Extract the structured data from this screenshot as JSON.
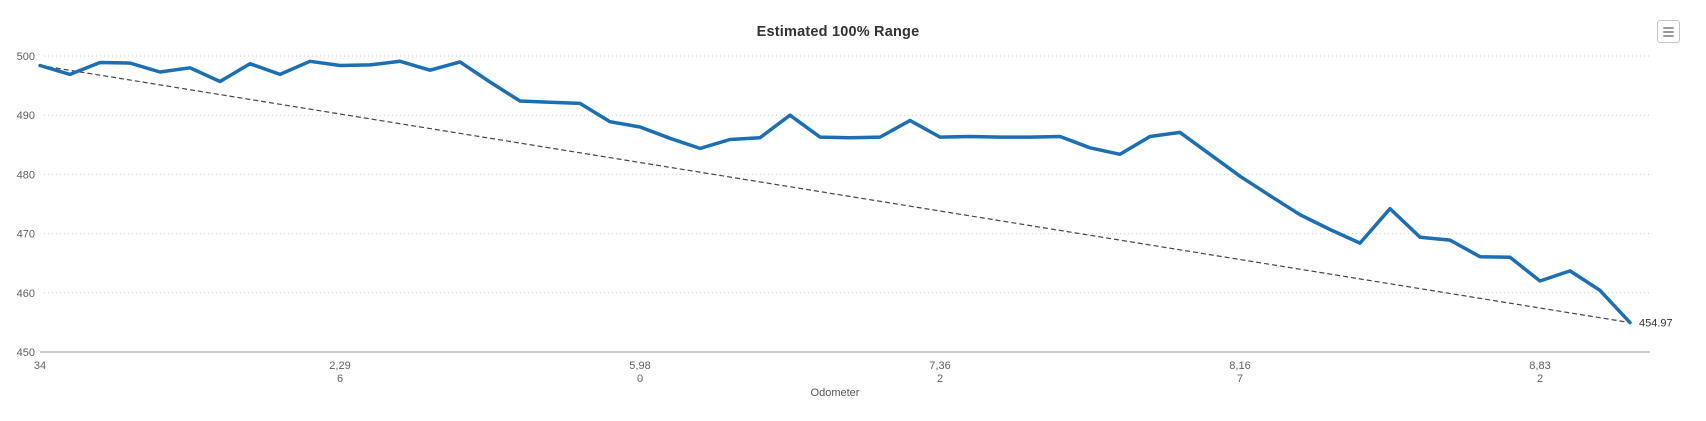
{
  "chart_data": {
    "type": "line",
    "title": "Estimated 100% Range",
    "xlabel": "Odometer",
    "ylabel": "",
    "ylim": [
      450,
      500
    ],
    "y_ticks": [
      450,
      460,
      470,
      480,
      490,
      500
    ],
    "grid": "dotted horizontal gridlines, solid baseline at 450, no legend",
    "x_ticks": [
      {
        "index": 0,
        "label": "34",
        "lines": [
          "34"
        ]
      },
      {
        "index": 10,
        "label": "2,296",
        "lines": [
          "2,29",
          "6"
        ]
      },
      {
        "index": 20,
        "label": "5,980",
        "lines": [
          "5,98",
          "0"
        ]
      },
      {
        "index": 30,
        "label": "7,362",
        "lines": [
          "7,36",
          "2"
        ]
      },
      {
        "index": 40,
        "label": "8,167",
        "lines": [
          "8,16",
          "7"
        ]
      },
      {
        "index": 50,
        "label": "8,832",
        "lines": [
          "8,83",
          "2"
        ]
      }
    ],
    "series": [
      {
        "color": "#1b6fb4",
        "values": [
          498.4,
          496.9,
          498.9,
          498.8,
          497.3,
          498.0,
          495.7,
          498.7,
          496.9,
          499.1,
          498.4,
          498.5,
          499.1,
          497.6,
          499.0,
          495.6,
          492.4,
          492.2,
          492.0,
          488.9,
          488.0,
          486.1,
          484.4,
          485.9,
          486.2,
          490.0,
          486.3,
          486.2,
          486.3,
          489.1,
          486.3,
          486.4,
          486.3,
          486.3,
          486.4,
          484.5,
          483.4,
          486.4,
          487.1,
          483.4,
          479.7,
          476.4,
          473.2,
          470.7,
          468.4,
          474.2,
          469.4,
          468.9,
          466.1,
          466.0,
          462.0,
          463.7,
          460.4,
          454.97
        ]
      }
    ],
    "trend": {
      "style": "dashed",
      "color": "#454545",
      "from_value": 498.4,
      "to_value": 454.97,
      "end_label": "454.97"
    }
  },
  "colors": {
    "series_blue": "#1b6fb4",
    "gridline": "#cccccc",
    "axis_line": "#999999",
    "tick_label": "#606060",
    "title_text": "#333333"
  },
  "icons": {
    "context_menu": "hamburger-menu-icon"
  }
}
